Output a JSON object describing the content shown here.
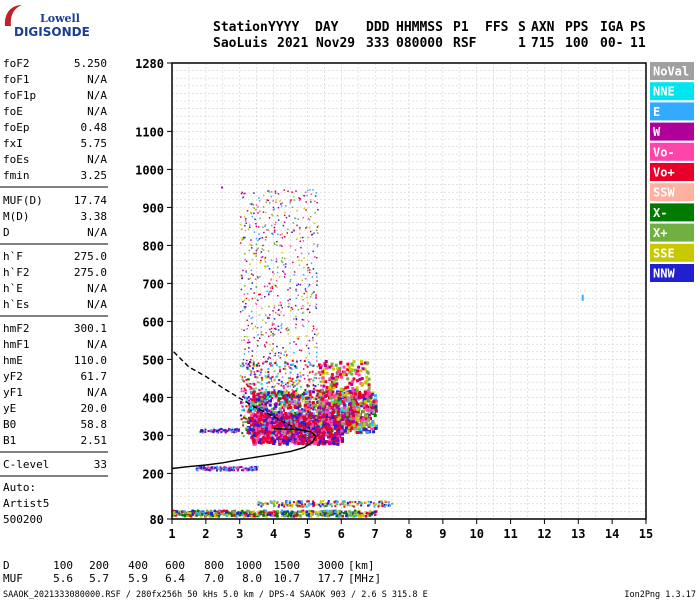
{
  "logo": {
    "line1": "Lowell",
    "line2": "DIGISONDE"
  },
  "header": {
    "labels": [
      "Station",
      "YYYY",
      "DAY",
      "DDD",
      "HHMMSS",
      "P1",
      "FFS",
      "S",
      "AXN",
      "PPS",
      "IGA",
      "PS"
    ],
    "values": [
      "SaoLuis",
      "2021",
      "Nov29",
      "333",
      "080000",
      "RSF",
      "1",
      "715",
      "100",
      "00-",
      "11"
    ]
  },
  "params": [
    {
      "name": "foF2",
      "value": "5.250"
    },
    {
      "name": "foF1",
      "value": "N/A"
    },
    {
      "name": "foF1p",
      "value": "N/A"
    },
    {
      "name": "foE",
      "value": "N/A"
    },
    {
      "name": "foEp",
      "value": "0.48"
    },
    {
      "name": "fxI",
      "value": "5.75"
    },
    {
      "name": "foEs",
      "value": "N/A"
    },
    {
      "name": "fmin",
      "value": "3.25"
    },
    {
      "name": "MUF(D)",
      "value": "17.74"
    },
    {
      "name": "M(D)",
      "value": "3.38"
    },
    {
      "name": "D",
      "value": "N/A"
    },
    {
      "name": "h`F",
      "value": "275.0"
    },
    {
      "name": "h`F2",
      "value": "275.0"
    },
    {
      "name": "h`E",
      "value": "N/A"
    },
    {
      "name": "h`Es",
      "value": "N/A"
    },
    {
      "name": "hmF2",
      "value": "300.1"
    },
    {
      "name": "hmF1",
      "value": "N/A"
    },
    {
      "name": "hmE",
      "value": "110.0"
    },
    {
      "name": "yF2",
      "value": "61.7"
    },
    {
      "name": "yF1",
      "value": "N/A"
    },
    {
      "name": "yE",
      "value": "20.0"
    },
    {
      "name": "B0",
      "value": "58.8"
    },
    {
      "name": "B1",
      "value": "2.51"
    },
    {
      "name": "C-level",
      "value": "33"
    }
  ],
  "auto": {
    "line1": "Auto:",
    "line2": "Artist5",
    "line3": "500200"
  },
  "muf_table": {
    "d_label": "D",
    "d_values": [
      "100",
      "200",
      "400",
      "600",
      "800",
      "1000",
      "1500",
      "3000"
    ],
    "d_unit": "[km]",
    "m_label": "MUF",
    "m_values": [
      "5.6",
      "5.7",
      "5.9",
      "6.4",
      "7.0",
      "8.0",
      "10.7",
      "17.7"
    ],
    "m_unit": "[MHz]"
  },
  "footer": {
    "left": "SAAOK_2021333080000.RSF / 280fx256h 50 kHs 5.0 km / DPS-4 SAAOK 903 / 2.6 S 315.8 E",
    "right": "Ion2Png 1.3.17"
  },
  "legend": [
    {
      "label": "NoVal",
      "color": "#a0a0a0"
    },
    {
      "label": "NNE",
      "color": "#00e5ee"
    },
    {
      "label": "E",
      "color": "#33aaff"
    },
    {
      "label": "W",
      "color": "#b0009a"
    },
    {
      "label": "Vo-",
      "color": "#ff44aa"
    },
    {
      "label": "Vo+",
      "color": "#e8002a"
    },
    {
      "label": "SSW",
      "color": "#ffb0a0"
    },
    {
      "label": "X-",
      "color": "#007a00"
    },
    {
      "label": "X+",
      "color": "#70b040"
    },
    {
      "label": "SSE",
      "color": "#c8c800"
    },
    {
      "label": "NNW",
      "color": "#2020d0"
    }
  ],
  "chart_data": {
    "type": "scatter",
    "title": "",
    "xlabel": "",
    "ylabel": "",
    "xlim": [
      1,
      15
    ],
    "ylim": [
      80,
      1280
    ],
    "x_ticks": [
      "1",
      "2",
      "3",
      "4",
      "5",
      "6",
      "7",
      "8",
      "9",
      "10",
      "11",
      "12",
      "13",
      "14",
      "15"
    ],
    "y_ticks": [
      {
        "value": 80,
        "label": "80"
      },
      {
        "value": 200,
        "label": "200"
      },
      {
        "value": 300,
        "label": "300"
      },
      {
        "value": 400,
        "label": "400"
      },
      {
        "value": 500,
        "label": "500"
      },
      {
        "value": 600,
        "label": "600"
      },
      {
        "value": 700,
        "label": "700"
      },
      {
        "value": 800,
        "label": "800"
      },
      {
        "value": 900,
        "label": "900"
      },
      {
        "value": 1000,
        "label": "1000"
      },
      {
        "value": 1100,
        "label": "1100"
      },
      {
        "value": 1280,
        "label": "1280"
      }
    ],
    "grid": true,
    "series": [
      {
        "name": "profile",
        "style": "solid",
        "points": [
          [
            1.0,
            213
          ],
          [
            1.5,
            218
          ],
          [
            2.0,
            222
          ],
          [
            2.5,
            228
          ],
          [
            3.0,
            236
          ],
          [
            3.5,
            243
          ],
          [
            4.0,
            250
          ],
          [
            4.5,
            258
          ],
          [
            4.9,
            268
          ],
          [
            5.15,
            282
          ],
          [
            5.25,
            298
          ],
          [
            5.1,
            310
          ],
          [
            4.7,
            315
          ],
          [
            4.0,
            318
          ]
        ]
      },
      {
        "name": "profile-extrapolated",
        "style": "dashed",
        "points": [
          [
            1.05,
            520
          ],
          [
            1.5,
            480
          ],
          [
            2.0,
            455
          ],
          [
            2.5,
            425
          ],
          [
            3.0,
            398
          ],
          [
            3.5,
            372
          ],
          [
            4.0,
            350
          ],
          [
            4.4,
            330
          ],
          [
            4.7,
            318
          ]
        ]
      }
    ]
  }
}
